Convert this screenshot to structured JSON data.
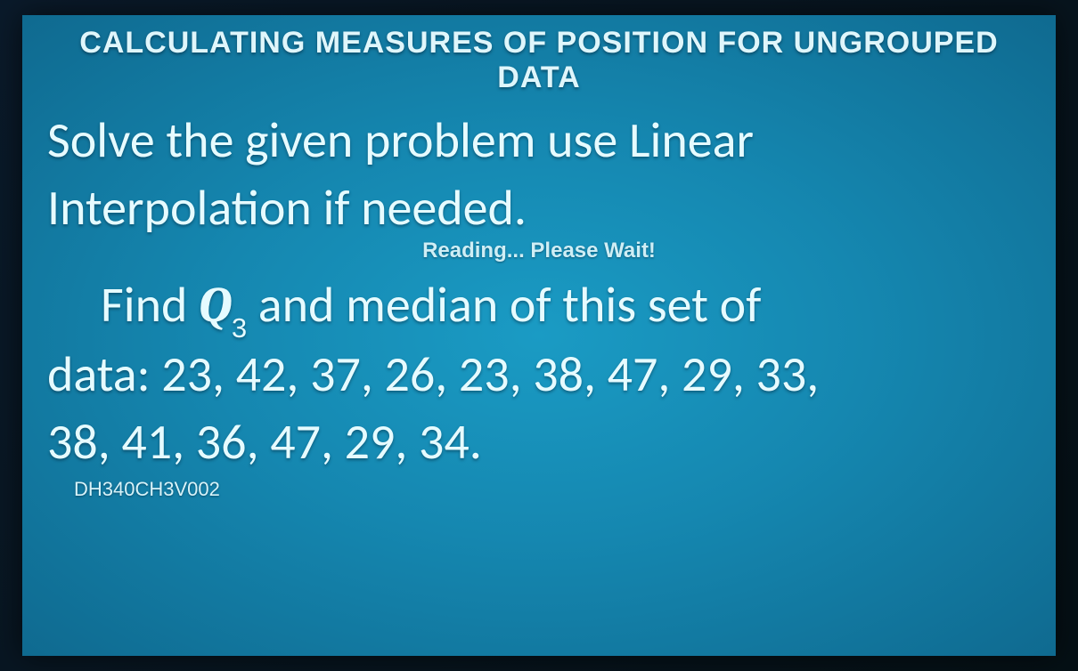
{
  "slide": {
    "title": "CALCULATING MEASURES OF POSITION FOR UNGROUPED DATA",
    "instruction_line1": "Solve the given problem use Linear",
    "instruction_line2": "Interpolation if needed.",
    "loading_text": "Reading... Please Wait!",
    "find_prefix": "Find ",
    "q_symbol": "Q",
    "q_subscript": "3",
    "find_suffix": " and median of this set of",
    "data_line1": "data: 23, 42, 37, 26, 23, 38, 47, 29, 33,",
    "data_line2": "38, 41, 36, 47, 29, 34.",
    "footer_code": "DH340CH3V002"
  },
  "style": {
    "background_gradient_inner": "#1a9bc4",
    "background_gradient_mid": "#1587b0",
    "background_gradient_outer": "#0f6a90",
    "text_color": "#e6fbff",
    "title_color": "#dff6fb",
    "title_fontsize": 34,
    "body_fontsize": 56,
    "loading_fontsize": 24,
    "footer_fontsize": 22
  }
}
